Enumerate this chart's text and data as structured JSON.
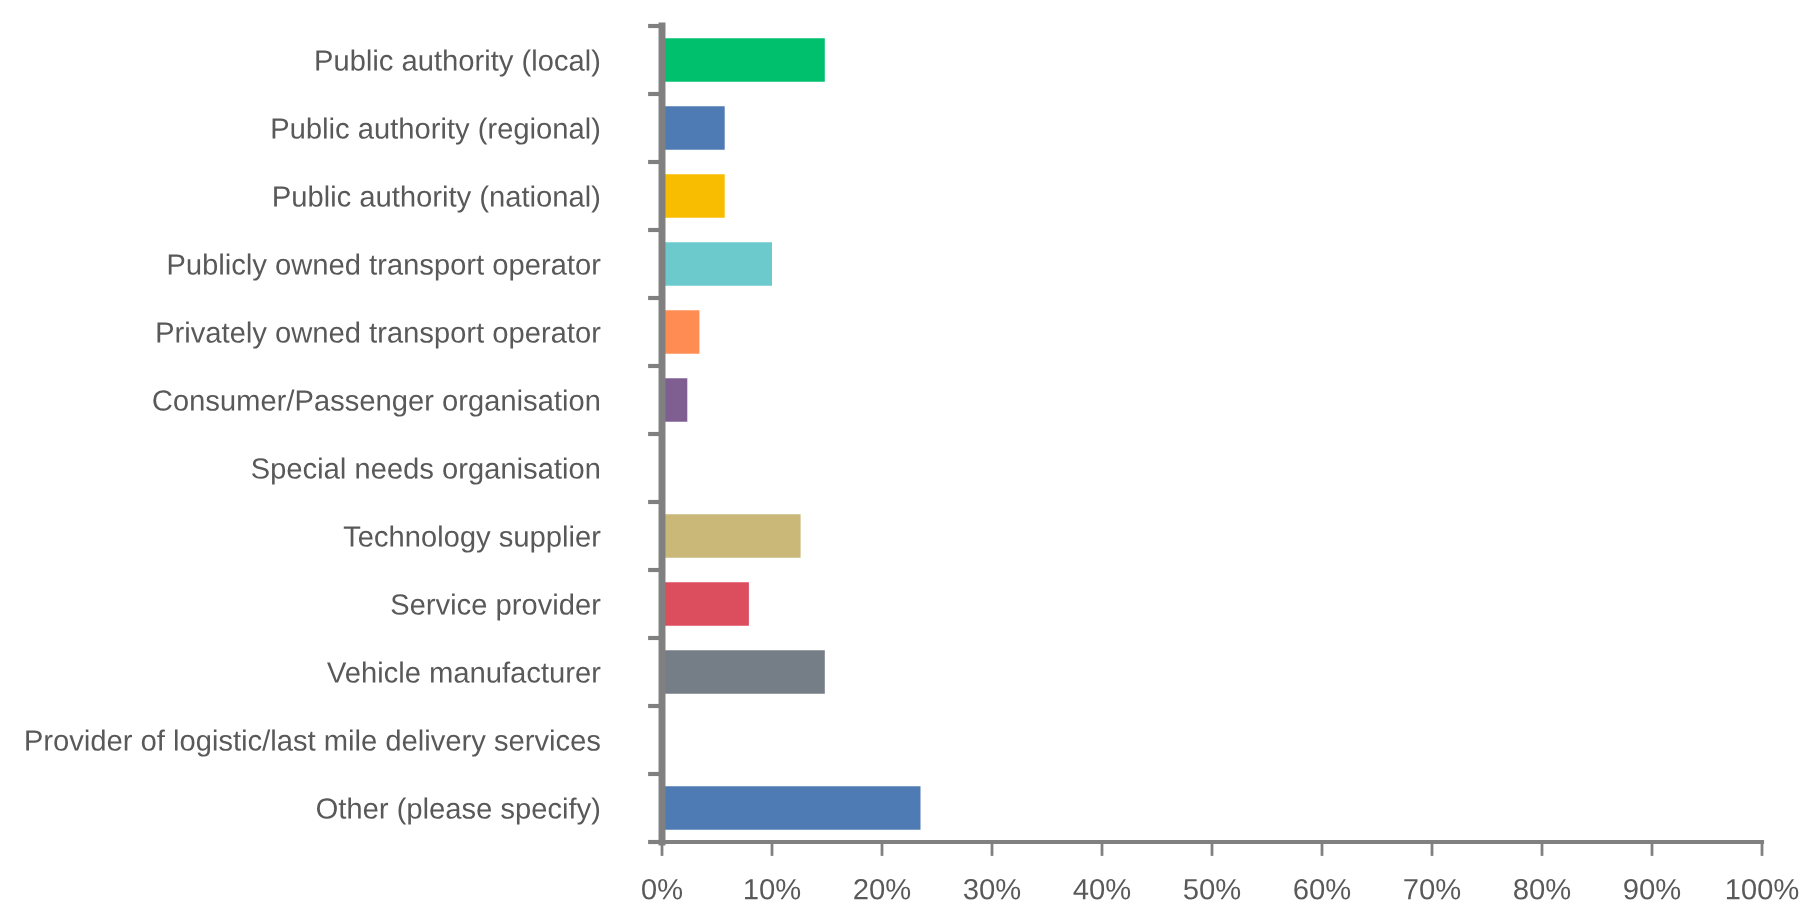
{
  "chart_data": {
    "type": "bar",
    "orientation": "horizontal",
    "categories": [
      "Public authority (local)",
      "Public authority (regional)",
      "Public authority (national)",
      "Publicly owned transport operator",
      "Privately owned transport operator",
      "Consumer/Passenger organisation",
      "Special needs organisation",
      "Technology supplier",
      "Service provider",
      "Vehicle manufacturer",
      "Provider of logistic/last mile delivery services",
      "Other (please specify)"
    ],
    "values": [
      14.8,
      5.7,
      5.7,
      10,
      3.4,
      2.3,
      0,
      12.6,
      7.9,
      14.8,
      0,
      23.5
    ],
    "colors": [
      "#00c06e",
      "#4f7bb5",
      "#f8bc00",
      "#6ccacd",
      "#ff8c52",
      "#7f5f92",
      null,
      "#c9b878",
      "#dc4e5e",
      "#757e87",
      null,
      "#4f7bb5"
    ],
    "xlim": [
      0,
      100
    ],
    "xticks": [
      {
        "value": 0,
        "label": "0%"
      },
      {
        "value": 10,
        "label": "10%"
      },
      {
        "value": 20,
        "label": "20%"
      },
      {
        "value": 30,
        "label": "30%"
      },
      {
        "value": 40,
        "label": "40%"
      },
      {
        "value": 50,
        "label": "50%"
      },
      {
        "value": 60,
        "label": "60%"
      },
      {
        "value": 70,
        "label": "70%"
      },
      {
        "value": 80,
        "label": "80%"
      },
      {
        "value": 90,
        "label": "90%"
      },
      {
        "value": 100,
        "label": "100%"
      }
    ],
    "grid": false,
    "legend": false
  }
}
